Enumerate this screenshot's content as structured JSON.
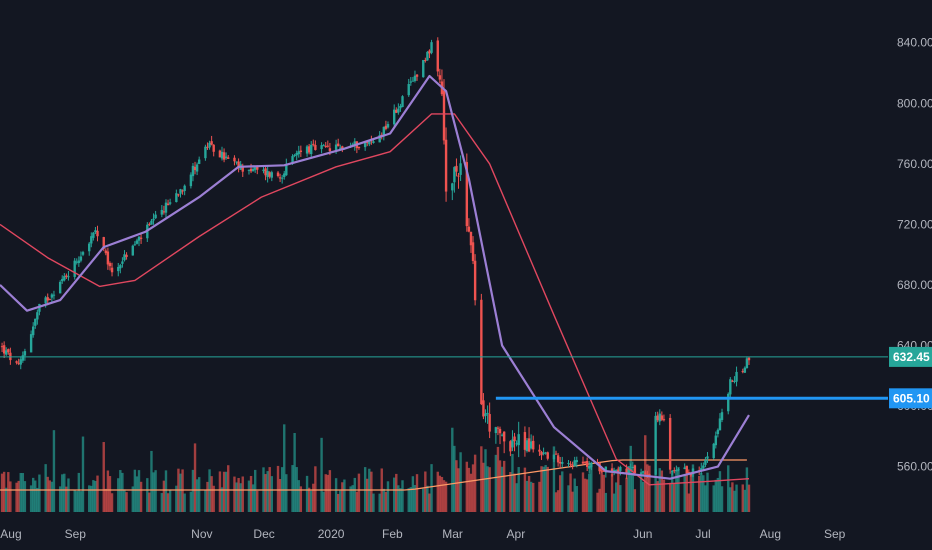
{
  "colors": {
    "background": "#131722",
    "grid": "#1f2430",
    "up": "#26a69a",
    "down": "#ef5350",
    "ma_fast": "#9c7fd4",
    "ma_slow": "#e0475f",
    "last_price_line": "#26a69a",
    "support_line": "#2196f3",
    "volume_ma": "#ff9966",
    "text": "#b2b5be"
  },
  "chart_data": {
    "type": "candlestick",
    "title": "",
    "xlabel": "",
    "ylabel": "",
    "ylim": [
      530,
      855
    ],
    "y_ticks": [
      "840.00",
      "800.00",
      "760.00",
      "720.00",
      "680.00",
      "640.00",
      "600.00",
      "560.00"
    ],
    "x_ticks": [
      "Aug",
      "Sep",
      "Nov",
      "Dec",
      "2020",
      "Feb",
      "Mar",
      "Apr",
      "Jun",
      "Jul",
      "Aug",
      "Sep"
    ],
    "price_path_keypoints": [
      {
        "date": "2019-07-28",
        "close": 640
      },
      {
        "date": "2019-08-06",
        "close": 625
      },
      {
        "date": "2019-08-16",
        "close": 665
      },
      {
        "date": "2019-08-30",
        "close": 688
      },
      {
        "date": "2019-09-12",
        "close": 715
      },
      {
        "date": "2019-09-20",
        "close": 688
      },
      {
        "date": "2019-10-04",
        "close": 712
      },
      {
        "date": "2019-10-24",
        "close": 745
      },
      {
        "date": "2019-11-05",
        "close": 772
      },
      {
        "date": "2019-11-20",
        "close": 758
      },
      {
        "date": "2019-12-10",
        "close": 752
      },
      {
        "date": "2019-12-20",
        "close": 770
      },
      {
        "date": "2020-01-05",
        "close": 770
      },
      {
        "date": "2020-01-25",
        "close": 775
      },
      {
        "date": "2020-02-06",
        "close": 800
      },
      {
        "date": "2020-02-21",
        "close": 838
      },
      {
        "date": "2020-02-26",
        "close": 805
      },
      {
        "date": "2020-02-28",
        "close": 740
      },
      {
        "date": "2020-03-06",
        "close": 760
      },
      {
        "date": "2020-03-12",
        "close": 690
      },
      {
        "date": "2020-03-16",
        "close": 600
      },
      {
        "date": "2020-03-23",
        "close": 580
      },
      {
        "date": "2020-04-06",
        "close": 574
      },
      {
        "date": "2020-04-20",
        "close": 566
      },
      {
        "date": "2020-05-01",
        "close": 562
      },
      {
        "date": "2020-05-20",
        "close": 558
      },
      {
        "date": "2020-06-05",
        "close": 556
      },
      {
        "date": "2020-06-08",
        "close": 594
      },
      {
        "date": "2020-06-12",
        "close": 590
      },
      {
        "date": "2020-06-15",
        "close": 556
      },
      {
        "date": "2020-06-30",
        "close": 557
      },
      {
        "date": "2020-07-08",
        "close": 585
      },
      {
        "date": "2020-07-14",
        "close": 615
      },
      {
        "date": "2020-07-20",
        "close": 625
      },
      {
        "date": "2020-07-23",
        "close": 632.45
      }
    ],
    "ma_fast": [
      {
        "date": "2019-07-28",
        "value": 680
      },
      {
        "date": "2019-08-10",
        "value": 663
      },
      {
        "date": "2019-08-26",
        "value": 670
      },
      {
        "date": "2019-09-16",
        "value": 705
      },
      {
        "date": "2019-10-06",
        "value": 715
      },
      {
        "date": "2019-11-01",
        "value": 738
      },
      {
        "date": "2019-11-20",
        "value": 758
      },
      {
        "date": "2019-12-12",
        "value": 759
      },
      {
        "date": "2020-01-10",
        "value": 770
      },
      {
        "date": "2020-02-01",
        "value": 780
      },
      {
        "date": "2020-02-20",
        "value": 818
      },
      {
        "date": "2020-02-28",
        "value": 808
      },
      {
        "date": "2020-03-10",
        "value": 750
      },
      {
        "date": "2020-03-26",
        "value": 640
      },
      {
        "date": "2020-04-20",
        "value": 586
      },
      {
        "date": "2020-05-15",
        "value": 557
      },
      {
        "date": "2020-06-15",
        "value": 552
      },
      {
        "date": "2020-07-08",
        "value": 560
      },
      {
        "date": "2020-07-23",
        "value": 594
      }
    ],
    "ma_slow": [
      {
        "date": "2019-07-28",
        "value": 720
      },
      {
        "date": "2019-08-20",
        "value": 698
      },
      {
        "date": "2019-09-14",
        "value": 679
      },
      {
        "date": "2019-10-01",
        "value": 683
      },
      {
        "date": "2019-11-01",
        "value": 712
      },
      {
        "date": "2019-12-01",
        "value": 738
      },
      {
        "date": "2020-01-06",
        "value": 758
      },
      {
        "date": "2020-02-01",
        "value": 768
      },
      {
        "date": "2020-02-21",
        "value": 793
      },
      {
        "date": "2020-03-03",
        "value": 793
      },
      {
        "date": "2020-03-20",
        "value": 760
      },
      {
        "date": "2020-04-20",
        "value": 660
      },
      {
        "date": "2020-05-20",
        "value": 565
      },
      {
        "date": "2020-06-05",
        "value": 548
      },
      {
        "date": "2020-07-01",
        "value": 550
      },
      {
        "date": "2020-07-23",
        "value": 552
      }
    ],
    "last_price": 632.45,
    "last_price_label": "632.45",
    "support_level": 605.1,
    "support_label": "605.10",
    "support_from_date": "2020-03-23",
    "volume_ma_level": "moderate-flat-then-rising",
    "grid": false,
    "legend": "none"
  }
}
